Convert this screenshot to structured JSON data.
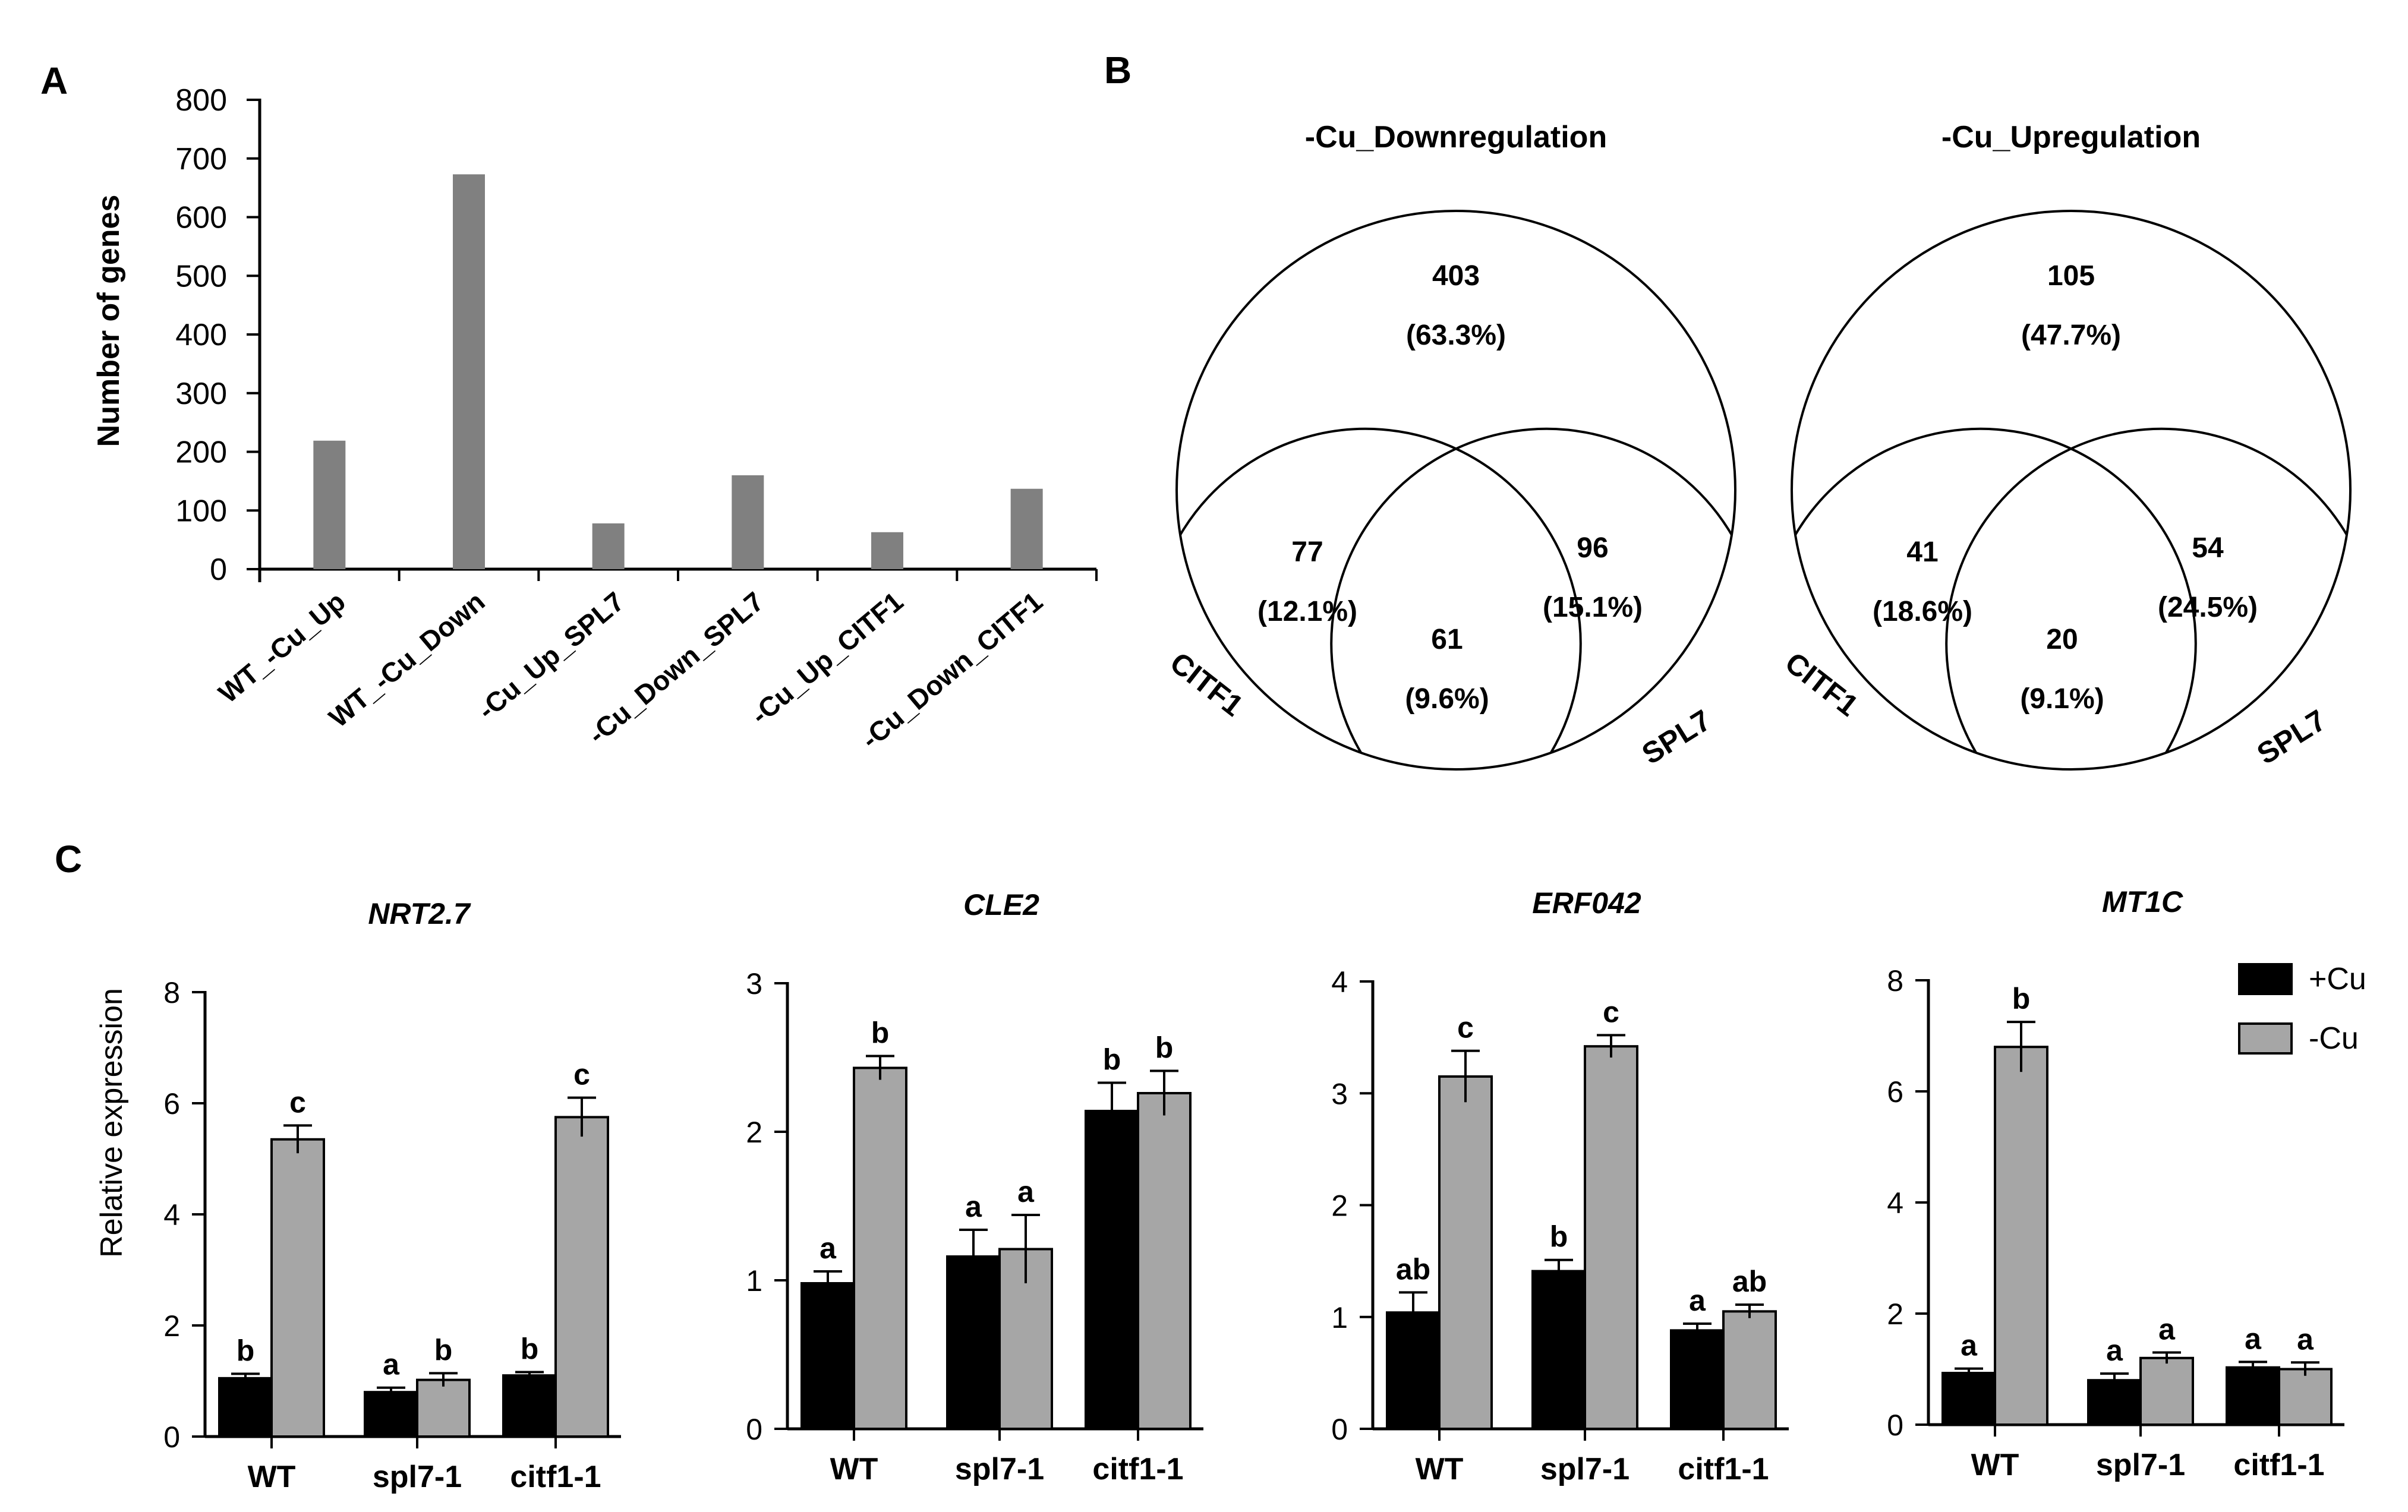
{
  "panels": {
    "a": "A",
    "b": "B",
    "c": "C"
  },
  "colors": {
    "bar_a": "#808080",
    "plus_cu": "#000000",
    "minus_cu": "#a6a6a6",
    "axis": "#000000"
  },
  "chart_data": [
    {
      "id": "panelA",
      "type": "bar",
      "title": "",
      "ylabel": "Number of genes",
      "xlabel": "",
      "ylim": [
        0,
        800
      ],
      "yticks": [
        0,
        100,
        200,
        300,
        400,
        500,
        600,
        700,
        800
      ],
      "categories": [
        "WT_-Cu_Up",
        "WT_-Cu_Down",
        "-Cu_Up_SPL7",
        "-Cu_Down_SPL7",
        "-Cu_Up_CITF1",
        "-Cu_Down_CITF1"
      ],
      "values": [
        219,
        673,
        78,
        160,
        63,
        137
      ]
    },
    {
      "id": "panelB",
      "type": "venn",
      "diagrams": [
        {
          "title": "-Cu_Downregulation",
          "top": {
            "count": "403",
            "pct": "(63.3%)"
          },
          "left": {
            "count": "77",
            "pct": "(12.1%)"
          },
          "right": {
            "count": "96",
            "pct": "(15.1%)"
          },
          "center": {
            "count": "61",
            "pct": "(9.6%)"
          },
          "left_label": "CITF1",
          "right_label": "SPL7"
        },
        {
          "title": "-Cu_Upregulation",
          "top": {
            "count": "105",
            "pct": "(47.7%)"
          },
          "left": {
            "count": "41",
            "pct": "(18.6%)"
          },
          "right": {
            "count": "54",
            "pct": "(24.5%)"
          },
          "center": {
            "count": "20",
            "pct": "(9.1%)"
          },
          "left_label": "CITF1",
          "right_label": "SPL7"
        }
      ]
    },
    {
      "id": "panelC",
      "type": "bar",
      "ylabel": "Relative expression",
      "legend": [
        "+Cu",
        "-Cu"
      ],
      "legend_position": "top-right",
      "categories": [
        "WT",
        "spl7-1",
        "citf1-1"
      ],
      "charts": [
        {
          "title": "NRT2.7",
          "ylim": [
            0,
            8
          ],
          "yticks": [
            0,
            2,
            4,
            6,
            8
          ],
          "series": [
            {
              "name": "+Cu",
              "values": [
                1.05,
                0.8,
                1.1
              ],
              "errors": [
                0.08,
                0.08,
                0.06
              ],
              "letters": [
                "b",
                "a",
                "b"
              ]
            },
            {
              "name": "-Cu",
              "values": [
                5.35,
                1.02,
                5.75
              ],
              "errors": [
                0.25,
                0.12,
                0.35
              ],
              "letters": [
                "c",
                "b",
                "c"
              ]
            }
          ]
        },
        {
          "title": "CLE2",
          "ylim": [
            0,
            3
          ],
          "yticks": [
            0,
            1,
            2,
            3
          ],
          "series": [
            {
              "name": "+Cu",
              "values": [
                0.98,
                1.16,
                2.14
              ],
              "errors": [
                0.08,
                0.18,
                0.19
              ],
              "letters": [
                "a",
                "a",
                "b"
              ]
            },
            {
              "name": "-Cu",
              "values": [
                2.43,
                1.21,
                2.26
              ],
              "errors": [
                0.08,
                0.23,
                0.15
              ],
              "letters": [
                "b",
                "a",
                "b"
              ]
            }
          ]
        },
        {
          "title": "ERF042",
          "ylim": [
            0,
            4
          ],
          "yticks": [
            0,
            1,
            2,
            3,
            4
          ],
          "series": [
            {
              "name": "+Cu",
              "values": [
                1.04,
                1.41,
                0.88
              ],
              "errors": [
                0.18,
                0.1,
                0.06
              ],
              "letters": [
                "ab",
                "b",
                "a"
              ]
            },
            {
              "name": "-Cu",
              "values": [
                3.15,
                3.42,
                1.05
              ],
              "errors": [
                0.23,
                0.1,
                0.06
              ],
              "letters": [
                "c",
                "c",
                "ab"
              ]
            }
          ]
        },
        {
          "title": "MT1C",
          "ylim": [
            0,
            8
          ],
          "yticks": [
            0,
            2,
            4,
            6,
            8
          ],
          "series": [
            {
              "name": "+Cu",
              "values": [
                0.93,
                0.8,
                1.03
              ],
              "errors": [
                0.08,
                0.12,
                0.1
              ],
              "letters": [
                "a",
                "a",
                "a"
              ]
            },
            {
              "name": "-Cu",
              "values": [
                6.8,
                1.2,
                1.0
              ],
              "errors": [
                0.45,
                0.1,
                0.12
              ],
              "letters": [
                "b",
                "a",
                "a"
              ]
            }
          ]
        }
      ]
    }
  ]
}
